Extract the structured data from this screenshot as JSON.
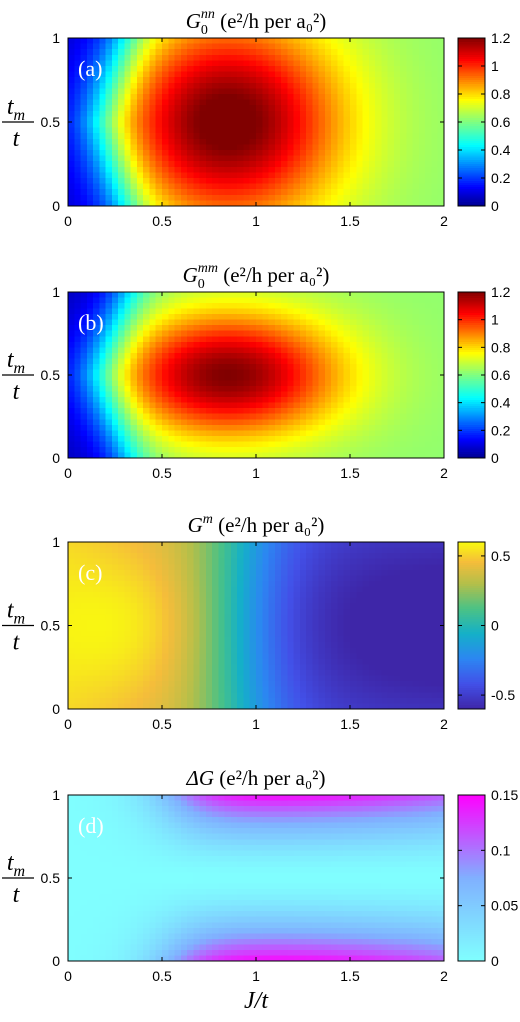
{
  "chart_data": [
    {
      "type": "heatmap",
      "panel": "(a)",
      "title_main": "G",
      "title_sub": "0",
      "title_sup": "nn",
      "title_units": "(e²/h per a₀²)",
      "x": [
        0,
        0.5,
        1,
        1.5,
        2
      ],
      "y": [
        0,
        0.5,
        1
      ],
      "xlim": [
        0,
        2
      ],
      "ylim": [
        0,
        1
      ],
      "xticks": [
        "0",
        "0.5",
        "1",
        "1.5",
        "2"
      ],
      "yticks": [
        "0",
        "0.5",
        "1"
      ],
      "colorbar": {
        "colormap": "jet",
        "range": [
          0,
          1.2
        ],
        "ticks": [
          "0",
          "0.2",
          "0.4",
          "0.6",
          "0.8",
          "1",
          "1.2"
        ]
      },
      "features": {
        "peak_value": 1.2,
        "peak_at": [
          0.85,
          0.5
        ],
        "min_value": 0.05,
        "min_at": [
          0,
          0.5
        ]
      }
    },
    {
      "type": "heatmap",
      "panel": "(b)",
      "title_main": "G",
      "title_sub": "0",
      "title_sup": "mm",
      "title_units": "(e²/h per a₀²)",
      "x": [
        0,
        0.5,
        1,
        1.5,
        2
      ],
      "y": [
        0,
        0.5,
        1
      ],
      "xlim": [
        0,
        2
      ],
      "ylim": [
        0,
        1
      ],
      "xticks": [
        "0",
        "0.5",
        "1",
        "1.5",
        "2"
      ],
      "yticks": [
        "0",
        "0.5",
        "1"
      ],
      "colorbar": {
        "colormap": "jet",
        "range": [
          0,
          1.2
        ],
        "ticks": [
          "0",
          "0.2",
          "0.4",
          "0.6",
          "0.8",
          "1",
          "1.2"
        ]
      },
      "features": {
        "peak_value": 1.15,
        "peak_at": [
          0.85,
          0.5
        ],
        "min_value": 0.05,
        "min_at": [
          0,
          0.5
        ]
      }
    },
    {
      "type": "heatmap",
      "panel": "(c)",
      "title_main": "G",
      "title_sup": "m",
      "title_units": "(e²/h per a₀²)",
      "x": [
        0,
        0.5,
        1,
        1.5,
        2
      ],
      "y": [
        0,
        0.5,
        1
      ],
      "xlim": [
        0,
        2
      ],
      "ylim": [
        0,
        1
      ],
      "xticks": [
        "0",
        "0.5",
        "1",
        "1.5",
        "2"
      ],
      "yticks": [
        "0",
        "0.5",
        "1"
      ],
      "colorbar": {
        "colormap": "parula",
        "range": [
          -0.6,
          0.6
        ],
        "ticks": [
          "-0.5",
          "0",
          "0.5"
        ],
        "tick_values": [
          -0.5,
          0,
          0.5
        ]
      },
      "features": {
        "max_value": 0.55,
        "max_at": [
          0.3,
          0.5
        ],
        "min_value": -0.6,
        "min_at": [
          2,
          0.5
        ]
      }
    },
    {
      "type": "heatmap",
      "panel": "(d)",
      "title_main": "ΔG",
      "title_units": "(e²/h per a₀²)",
      "x": [
        0,
        0.5,
        1,
        1.5,
        2
      ],
      "y": [
        0,
        0.5,
        1
      ],
      "xlim": [
        0,
        2
      ],
      "ylim": [
        0,
        1
      ],
      "xticks": [
        "0",
        "0.5",
        "1",
        "1.5",
        "2"
      ],
      "yticks": [
        "0",
        "0.5",
        "1"
      ],
      "colorbar": {
        "colormap": "cool",
        "range": [
          0,
          0.15
        ],
        "ticks": [
          "0",
          "0.05",
          "0.1",
          "0.15"
        ]
      },
      "features": {
        "max_value": 0.15,
        "max_at": [
          [
            0.9,
            0
          ],
          [
            0.9,
            1
          ]
        ],
        "min_value": 0,
        "min_at": [
          0,
          0.5
        ]
      }
    }
  ],
  "ylabel": {
    "num": "t",
    "num_sub": "m",
    "den": "t"
  },
  "xlabel": "J/t"
}
